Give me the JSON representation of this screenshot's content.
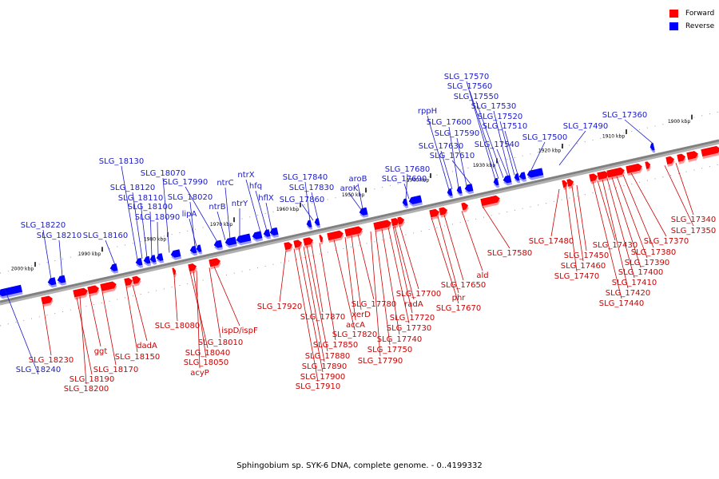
{
  "caption": "Sphingobium sp. SYK-6 DNA, complete genome. - 0..4199332",
  "legend": [
    {
      "label": "Forward",
      "color": "#ff0000"
    },
    {
      "label": "Reverse",
      "color": "#0000ff"
    }
  ],
  "colors": {
    "forward": "#ff0000",
    "reverse": "#0000ff",
    "forward_shadow": "#ff9999",
    "reverse_shadow": "#9999ff",
    "axis": "#808080",
    "forward_label": "#cc0000",
    "reverse_label": "#1a1acc"
  },
  "scale_labels": [
    "2000 kbp",
    "1990 kbp",
    "1980 kbp",
    "1970 kbp",
    "1960 kbp",
    "1950 kbp",
    "1940 kbp",
    "1930 kbp",
    "1920 kbp",
    "1910 kbp",
    "1900 kbp"
  ],
  "reverse_genes": [
    "SLG_18240",
    "SLG_18220",
    "SLG_18210",
    "SLG_18160",
    "SLG_18130",
    "SLG_18120",
    "SLG_18110",
    "SLG_18100",
    "SLG_18090",
    "SLG_18070",
    "SLG_18020",
    "lipA",
    "SLG_17990",
    "ntrC",
    "ntrB",
    "ntrX",
    "hfq",
    "ntrY",
    "hflX",
    "SLG_17840",
    "SLG_17830",
    "SLG_17860",
    "aroB",
    "aroK",
    "SLG_17680",
    "SLG_17690",
    "rppH",
    "SLG_17600",
    "SLG_17590",
    "SLG_17630",
    "SLG_17610",
    "SLG_17570",
    "SLG_17560",
    "SLG_17550",
    "SLG_17530",
    "SLG_17520",
    "SLG_17510",
    "SLG_17540",
    "SLG_17500",
    "SLG_17490",
    "SLG_17360"
  ],
  "forward_genes": [
    "SLG_18230",
    "SLG_18190",
    "SLG_18200",
    "ggt",
    "SLG_18170",
    "SLG_18150",
    "dadA",
    "SLG_18080",
    "SLG_18040",
    "SLG_18050",
    "SLG_18010",
    "acyP",
    "ispD/ispF",
    "SLG_17920",
    "SLG_17910",
    "SLG_17900",
    "SLG_17890",
    "SLG_17880",
    "SLG_17870",
    "SLG_17850",
    "SLG_17820",
    "accA",
    "xerD",
    "SLG_17780",
    "SLG_17790",
    "SLG_17750",
    "SLG_17740",
    "SLG_17730",
    "SLG_17720",
    "radA",
    "SLG_17700",
    "SLG_17670",
    "phr",
    "SLG_17650",
    "ald",
    "SLG_17580",
    "SLG_17480",
    "SLG_17470",
    "SLG_17460",
    "SLG_17450",
    "SLG_17440",
    "SLG_17430",
    "SLG_17420",
    "SLG_17410",
    "SLG_17400",
    "SLG_17390",
    "SLG_17380",
    "SLG_17370",
    "SLG_17350",
    "SLG_17340"
  ]
}
